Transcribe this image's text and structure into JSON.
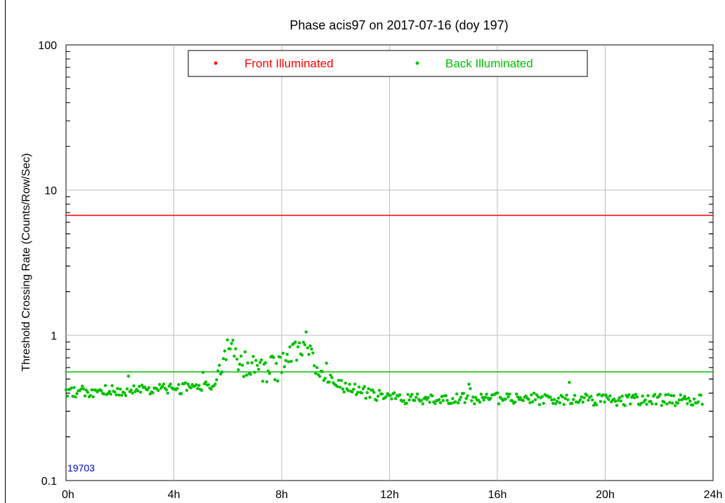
{
  "chart_data": {
    "type": "scatter",
    "title": "Phase acis97 on 2017-07-16 (doy 197)",
    "xlabel": "",
    "ylabel": "Threshold Crossing Rate (Counts/Row/Sec)",
    "x_unit": "hours",
    "xlim": [
      0,
      24
    ],
    "ylim": [
      0.1,
      100
    ],
    "y_scale": "log",
    "grid": true,
    "legend_position": "top",
    "x_ticks": [
      {
        "value": 0,
        "label": "0h"
      },
      {
        "value": 4,
        "label": "4h"
      },
      {
        "value": 8,
        "label": "8h"
      },
      {
        "value": 12,
        "label": "12h"
      },
      {
        "value": 16,
        "label": "16h"
      },
      {
        "value": 20,
        "label": "20h"
      },
      {
        "value": 24,
        "label": "24h"
      }
    ],
    "y_ticks": [
      {
        "value": 0.1,
        "label": "0.1"
      },
      {
        "value": 1,
        "label": "1"
      },
      {
        "value": 10,
        "label": "10"
      },
      {
        "value": 100,
        "label": "100"
      }
    ],
    "series": [
      {
        "name": "Front Illuminated",
        "color": "#ff0000",
        "threshold_line": 6.7,
        "points": []
      },
      {
        "name": "Back Illuminated",
        "color": "#00c000",
        "threshold_line": 0.56,
        "profile": [
          [
            0.0,
            0.41
          ],
          [
            3.0,
            0.42
          ],
          [
            5.5,
            0.45
          ],
          [
            5.8,
            0.7
          ],
          [
            6.1,
            1.0
          ],
          [
            6.4,
            0.65
          ],
          [
            7.0,
            0.62
          ],
          [
            7.5,
            0.6
          ],
          [
            8.0,
            0.62
          ],
          [
            8.5,
            0.78
          ],
          [
            8.9,
            0.9
          ],
          [
            9.2,
            0.6
          ],
          [
            10.0,
            0.46
          ],
          [
            11.0,
            0.41
          ],
          [
            12.0,
            0.37
          ],
          [
            16.0,
            0.37
          ],
          [
            20.0,
            0.36
          ],
          [
            23.6,
            0.36
          ]
        ]
      }
    ],
    "annotation": {
      "text": "19703",
      "color": "#0000cc"
    }
  }
}
